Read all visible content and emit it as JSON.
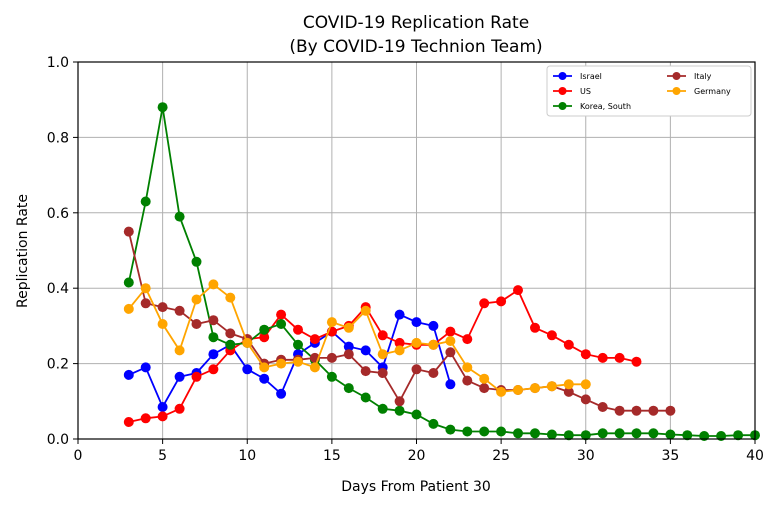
{
  "chart_data": {
    "type": "line",
    "title": "COVID-19 Replication Rate",
    "subtitle": "(By COVID-19 Technion Team)",
    "xlabel": "Days From Patient 30",
    "ylabel": "Replication Rate",
    "xlim": [
      0,
      40
    ],
    "ylim": [
      0,
      1.0
    ],
    "xticks": [
      "0",
      "5",
      "10",
      "15",
      "20",
      "25",
      "30",
      "35",
      "40"
    ],
    "yticks": [
      "0.0",
      "0.2",
      "0.4",
      "0.6",
      "0.8",
      "1.0"
    ],
    "grid": true,
    "legend_position": "top-right",
    "series": [
      {
        "name": "Israel",
        "color": "#0000ff",
        "x": [
          3,
          4,
          5,
          6,
          7,
          8,
          9,
          10,
          11,
          12,
          13,
          14,
          15,
          16,
          17,
          18,
          19,
          20,
          21,
          22
        ],
        "y": [
          0.17,
          0.19,
          0.085,
          0.165,
          0.175,
          0.225,
          0.25,
          0.185,
          0.16,
          0.12,
          0.225,
          0.255,
          0.285,
          0.245,
          0.235,
          0.19,
          0.33,
          0.31,
          0.3,
          0.145
        ]
      },
      {
        "name": "US",
        "color": "#ff0000",
        "x": [
          3,
          4,
          5,
          6,
          7,
          8,
          9,
          10,
          11,
          12,
          13,
          14,
          15,
          16,
          17,
          18,
          19,
          20,
          21,
          22,
          23,
          24,
          25,
          26,
          27,
          28,
          29,
          30,
          31,
          32,
          33
        ],
        "y": [
          0.045,
          0.055,
          0.06,
          0.08,
          0.165,
          0.185,
          0.235,
          0.265,
          0.27,
          0.33,
          0.29,
          0.265,
          0.285,
          0.3,
          0.35,
          0.275,
          0.255,
          0.25,
          0.25,
          0.285,
          0.265,
          0.36,
          0.365,
          0.395,
          0.295,
          0.275,
          0.25,
          0.225,
          0.215,
          0.215,
          0.205
        ]
      },
      {
        "name": "Korea, South",
        "color": "#008000",
        "x": [
          3,
          4,
          5,
          6,
          7,
          8,
          9,
          10,
          11,
          12,
          13,
          14,
          15,
          16,
          17,
          18,
          19,
          20,
          21,
          22,
          23,
          24,
          25,
          26,
          27,
          28,
          29,
          30,
          31,
          32,
          33,
          34,
          35,
          36,
          37,
          38,
          39,
          40
        ],
        "y": [
          0.415,
          0.63,
          0.88,
          0.59,
          0.47,
          0.27,
          0.25,
          0.255,
          0.29,
          0.305,
          0.25,
          0.21,
          0.165,
          0.135,
          0.11,
          0.08,
          0.075,
          0.065,
          0.04,
          0.025,
          0.02,
          0.02,
          0.02,
          0.015,
          0.015,
          0.012,
          0.01,
          0.01,
          0.015,
          0.015,
          0.015,
          0.015,
          0.012,
          0.01,
          0.008,
          0.008,
          0.01,
          0.01
        ]
      },
      {
        "name": "Italy",
        "color": "#a52a2a",
        "x": [
          3,
          4,
          5,
          6,
          7,
          8,
          9,
          10,
          11,
          12,
          13,
          14,
          15,
          16,
          17,
          18,
          19,
          20,
          21,
          22,
          23,
          24,
          25,
          26,
          27,
          28,
          29,
          30,
          31,
          32,
          33,
          34,
          35
        ],
        "y": [
          0.55,
          0.36,
          0.35,
          0.34,
          0.305,
          0.315,
          0.28,
          0.265,
          0.2,
          0.21,
          0.21,
          0.215,
          0.215,
          0.225,
          0.18,
          0.175,
          0.1,
          0.185,
          0.175,
          0.23,
          0.155,
          0.135,
          0.13,
          0.13,
          0.135,
          0.14,
          0.125,
          0.105,
          0.085,
          0.075,
          0.075,
          0.075,
          0.075
        ]
      },
      {
        "name": "Germany",
        "color": "#ffa500",
        "x": [
          3,
          4,
          5,
          6,
          7,
          8,
          9,
          10,
          11,
          12,
          13,
          14,
          15,
          16,
          17,
          18,
          19,
          20,
          21,
          22,
          23,
          24,
          25,
          26,
          27,
          28,
          29,
          30
        ],
        "y": [
          0.345,
          0.4,
          0.305,
          0.235,
          0.37,
          0.41,
          0.375,
          0.255,
          0.19,
          0.2,
          0.205,
          0.19,
          0.31,
          0.295,
          0.34,
          0.225,
          0.235,
          0.255,
          0.25,
          0.26,
          0.19,
          0.16,
          0.125,
          0.13,
          0.135,
          0.14,
          0.145,
          0.145
        ]
      }
    ]
  }
}
